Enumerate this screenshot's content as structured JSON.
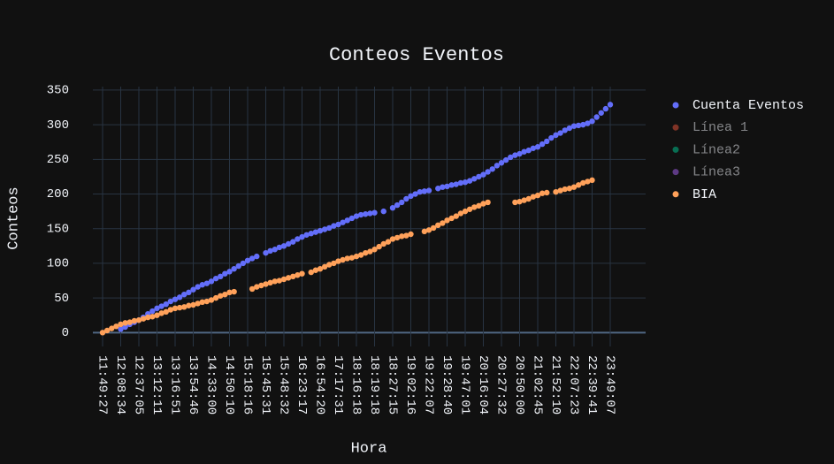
{
  "chart_data": {
    "type": "scatter",
    "title": "Conteos Eventos",
    "x_label": "Hora",
    "y_label": "Conteos",
    "categories": [
      "11:49:27",
      null,
      null,
      null,
      "12:08:34",
      null,
      null,
      null,
      "12:37:05",
      null,
      null,
      null,
      "13:12:11",
      null,
      null,
      null,
      "13:16:51",
      null,
      null,
      null,
      "13:54:46",
      null,
      null,
      null,
      "14:33:00",
      null,
      null,
      null,
      "14:50:10",
      null,
      null,
      null,
      "15:18:16",
      null,
      null,
      null,
      "15:45:31",
      null,
      null,
      null,
      "15:48:32",
      null,
      null,
      null,
      "16:23:17",
      null,
      null,
      null,
      "16:54:20",
      null,
      null,
      null,
      "17:17:31",
      null,
      null,
      null,
      "18:16:18",
      null,
      null,
      null,
      "18:19:18",
      null,
      null,
      null,
      "18:27:15",
      null,
      null,
      null,
      "19:02:16",
      null,
      null,
      null,
      "19:22:07",
      null,
      null,
      null,
      "19:28:40",
      null,
      null,
      null,
      "19:47:01",
      null,
      null,
      null,
      "20:16:04",
      null,
      null,
      null,
      "20:27:32",
      null,
      null,
      null,
      "20:50:00",
      null,
      null,
      null,
      "21:02:45",
      null,
      null,
      null,
      "21:52:10",
      null,
      null,
      null,
      "22:07:23",
      null,
      null,
      null,
      "22:39:41",
      null,
      null,
      null,
      "23:49:07"
    ],
    "series": [
      {
        "name": "Cuenta Eventos",
        "color": "#636efa",
        "values": [
          null,
          null,
          null,
          null,
          5,
          8,
          12,
          15,
          18,
          22,
          27,
          31,
          35,
          38,
          41,
          45,
          48,
          51,
          55,
          58,
          62,
          66,
          69,
          71,
          74,
          78,
          81,
          85,
          88,
          92,
          96,
          100,
          104,
          107,
          110,
          null,
          115,
          118,
          120,
          123,
          125,
          128,
          131,
          135,
          138,
          141,
          143,
          145,
          147,
          149,
          151,
          154,
          156,
          159,
          162,
          165,
          168,
          170,
          171,
          172,
          173,
          null,
          175,
          null,
          180,
          184,
          188,
          193,
          197,
          200,
          203,
          204,
          205,
          null,
          208,
          210,
          211,
          213,
          214,
          216,
          217,
          219,
          222,
          225,
          228,
          232,
          236,
          241,
          245,
          249,
          253,
          256,
          258,
          261,
          263,
          266,
          268,
          272,
          276,
          281,
          285,
          288,
          292,
          295,
          298,
          299,
          300,
          302,
          305,
          311,
          317,
          323,
          329
        ]
      },
      {
        "name": "Línea 1",
        "color": "#EF553B",
        "visible": "legendonly"
      },
      {
        "name": "Línea2",
        "color": "#00cc96",
        "visible": "legendonly"
      },
      {
        "name": "Línea3",
        "color": "#ab63fa",
        "visible": "legendonly"
      },
      {
        "name": "BIA",
        "color": "#FFA15A",
        "values": [
          0,
          3,
          6,
          9,
          12,
          14,
          15,
          17,
          18,
          20,
          22,
          23,
          25,
          28,
          30,
          33,
          35,
          36,
          37,
          39,
          40,
          42,
          44,
          45,
          47,
          50,
          53,
          55,
          58,
          59,
          null,
          null,
          null,
          63,
          66,
          68,
          70,
          72,
          74,
          75,
          77,
          79,
          81,
          83,
          85,
          null,
          87,
          90,
          92,
          95,
          98,
          100,
          103,
          105,
          107,
          108,
          110,
          112,
          115,
          117,
          120,
          124,
          128,
          131,
          135,
          137,
          139,
          140,
          142,
          null,
          null,
          146,
          148,
          151,
          155,
          158,
          162,
          165,
          168,
          172,
          175,
          178,
          181,
          183,
          186,
          188,
          null,
          null,
          null,
          null,
          null,
          188,
          189,
          191,
          193,
          196,
          198,
          201,
          202,
          null,
          203,
          205,
          207,
          208,
          210,
          213,
          216,
          218,
          220,
          null,
          null,
          null,
          null
        ]
      }
    ],
    "ylim": [
      -20,
      355
    ],
    "yticks": [
      0,
      50,
      100,
      150,
      200,
      250,
      300,
      350
    ],
    "grid": true
  }
}
